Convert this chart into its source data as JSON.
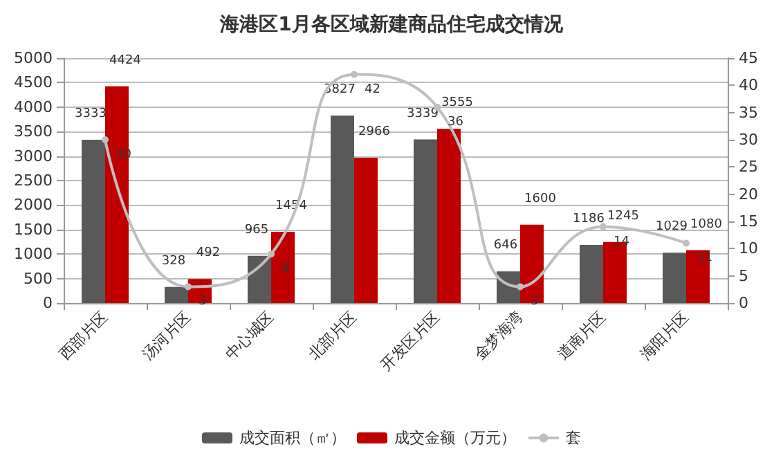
{
  "chart_data": {
    "type": "bar",
    "title": "海港区1月各区域新建商品住宅成交情况",
    "categories": [
      "西部片区",
      "汤河片区",
      "中心城区",
      "北部片区",
      "开发区片区",
      "金梦海湾",
      "道南片区",
      "海阳片区"
    ],
    "series": [
      {
        "name": "成交面积（㎡）",
        "color": "#595959",
        "values": [
          3333,
          328,
          965,
          3827,
          3339,
          646,
          1186,
          1029
        ]
      },
      {
        "name": "成交金额（万元）",
        "color": "#c00000",
        "values": [
          4424,
          492,
          1454,
          2966,
          3555,
          1600,
          1245,
          1080
        ]
      },
      {
        "name": "套",
        "type": "line",
        "axis": "y2",
        "color": "#bfbfbf",
        "marker": "circle",
        "values": [
          30,
          3,
          9,
          42,
          36,
          3,
          14,
          11
        ]
      }
    ],
    "ylim": [
      0,
      5000
    ],
    "yticks": [
      0,
      500,
      1000,
      1500,
      2000,
      2500,
      3000,
      3500,
      4000,
      4500,
      5000
    ],
    "y2lim": [
      0,
      45
    ],
    "y2ticks": [
      0,
      5,
      10,
      15,
      20,
      25,
      30,
      35,
      40,
      45
    ],
    "grid": "y",
    "legend": "bottom",
    "data_labels": true
  }
}
